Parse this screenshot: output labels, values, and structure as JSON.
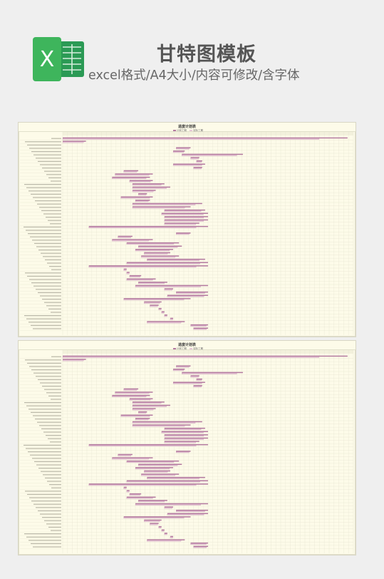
{
  "header": {
    "title": "甘特图模板",
    "subtitle": "excel格式/A4大小/内容可修改/含字体",
    "logo": {
      "icon": "excel-icon",
      "letter": "X",
      "color": "#21a366"
    }
  },
  "sheet": {
    "title": "进度计划表",
    "legend": [
      "计划工期",
      "实际工期"
    ],
    "colors": {
      "plan": "#b47aa0",
      "actual": "#e8c8d8",
      "grid": "#e2e0cc",
      "background": "#fdfbe9"
    }
  }
}
